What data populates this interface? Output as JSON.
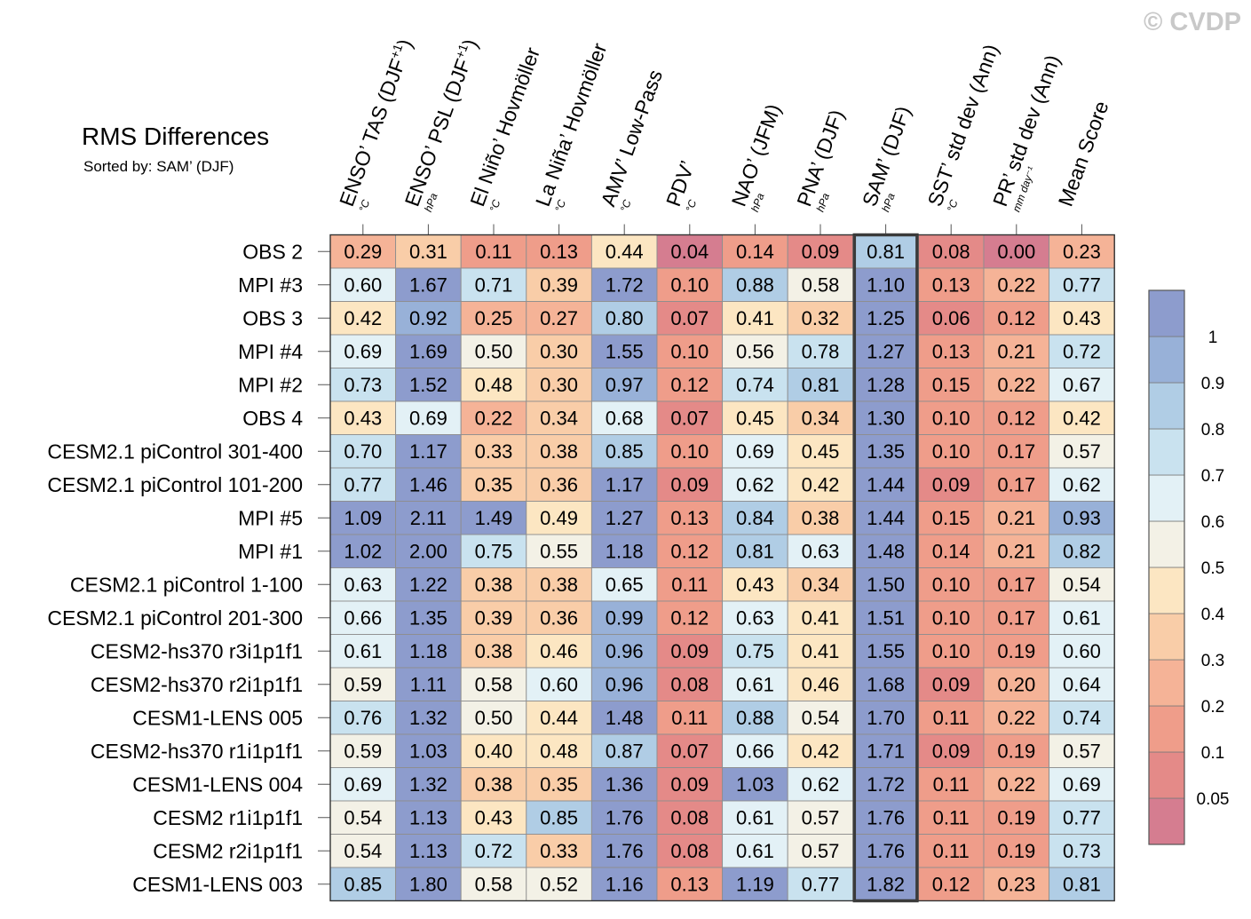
{
  "title": "RMS Differences",
  "subtitle": "Sorted by: SAM’ (DJF)",
  "watermark": "© CVDP",
  "chart_data": {
    "type": "heatmap",
    "sorted_by": "SAM’ (DJF)",
    "columns": [
      {
        "label": "ENSO’ TAS (DJF",
        "sup": "+1",
        "tail": ")",
        "unit": "°C"
      },
      {
        "label": "ENSO’ PSL (DJF",
        "sup": "+1",
        "tail": ")",
        "unit": "hPa"
      },
      {
        "label": "El Niño’ Hovmöller",
        "sup": "",
        "tail": "",
        "unit": "°C"
      },
      {
        "label": "La Niña’ Hovmöller",
        "sup": "",
        "tail": "",
        "unit": "°C"
      },
      {
        "label": "AMV’ Low-Pass",
        "sup": "",
        "tail": "",
        "unit": "°C"
      },
      {
        "label": "PDV’",
        "sup": "",
        "tail": "",
        "unit": "°C"
      },
      {
        "label": "NAO’ (JFM)",
        "sup": "",
        "tail": "",
        "unit": "hPa"
      },
      {
        "label": "PNA’ (DJF)",
        "sup": "",
        "tail": "",
        "unit": "hPa"
      },
      {
        "label": "SAM’ (DJF)",
        "sup": "",
        "tail": "",
        "unit": "hPa"
      },
      {
        "label": "SST’ std dev (Ann)",
        "sup": "",
        "tail": "",
        "unit": "°C"
      },
      {
        "label": "PR’ std dev (Ann)",
        "sup": "",
        "tail": "",
        "unit": "mm day⁻¹"
      },
      {
        "label": "Mean Score",
        "sup": "",
        "tail": "",
        "unit": ""
      }
    ],
    "rows": [
      {
        "name": "OBS 2",
        "values": [
          0.29,
          0.31,
          0.11,
          0.13,
          0.44,
          0.04,
          0.14,
          0.09,
          0.81,
          0.08,
          0.0,
          0.23
        ]
      },
      {
        "name": "MPI #3",
        "values": [
          0.6,
          1.67,
          0.71,
          0.39,
          1.72,
          0.1,
          0.88,
          0.58,
          1.1,
          0.13,
          0.22,
          0.77
        ]
      },
      {
        "name": "OBS 3",
        "values": [
          0.42,
          0.92,
          0.25,
          0.27,
          0.8,
          0.07,
          0.41,
          0.32,
          1.25,
          0.06,
          0.12,
          0.43
        ]
      },
      {
        "name": "MPI #4",
        "values": [
          0.69,
          1.69,
          0.5,
          0.3,
          1.55,
          0.1,
          0.56,
          0.78,
          1.27,
          0.13,
          0.21,
          0.72
        ]
      },
      {
        "name": "MPI #2",
        "values": [
          0.73,
          1.52,
          0.48,
          0.3,
          0.97,
          0.12,
          0.74,
          0.81,
          1.28,
          0.15,
          0.22,
          0.67
        ]
      },
      {
        "name": "OBS 4",
        "values": [
          0.43,
          0.69,
          0.22,
          0.34,
          0.68,
          0.07,
          0.45,
          0.34,
          1.3,
          0.1,
          0.12,
          0.42
        ]
      },
      {
        "name": "CESM2.1 piControl 301-400",
        "values": [
          0.7,
          1.17,
          0.33,
          0.38,
          0.85,
          0.1,
          0.69,
          0.45,
          1.35,
          0.1,
          0.17,
          0.57
        ]
      },
      {
        "name": "CESM2.1 piControl 101-200",
        "values": [
          0.77,
          1.46,
          0.35,
          0.36,
          1.17,
          0.09,
          0.62,
          0.42,
          1.44,
          0.09,
          0.17,
          0.62
        ]
      },
      {
        "name": "MPI #5",
        "values": [
          1.09,
          2.11,
          1.49,
          0.49,
          1.27,
          0.13,
          0.84,
          0.38,
          1.44,
          0.15,
          0.21,
          0.93
        ]
      },
      {
        "name": "MPI #1",
        "values": [
          1.02,
          2.0,
          0.75,
          0.55,
          1.18,
          0.12,
          0.81,
          0.63,
          1.48,
          0.14,
          0.21,
          0.82
        ]
      },
      {
        "name": "CESM2.1 piControl 1-100",
        "values": [
          0.63,
          1.22,
          0.38,
          0.38,
          0.65,
          0.11,
          0.43,
          0.34,
          1.5,
          0.1,
          0.17,
          0.54
        ]
      },
      {
        "name": "CESM2.1 piControl 201-300",
        "values": [
          0.66,
          1.35,
          0.39,
          0.36,
          0.99,
          0.12,
          0.63,
          0.41,
          1.51,
          0.1,
          0.17,
          0.61
        ]
      },
      {
        "name": "CESM2-hs370 r3i1p1f1",
        "values": [
          0.61,
          1.18,
          0.38,
          0.46,
          0.96,
          0.09,
          0.75,
          0.41,
          1.55,
          0.1,
          0.19,
          0.6
        ]
      },
      {
        "name": "CESM2-hs370 r2i1p1f1",
        "values": [
          0.59,
          1.11,
          0.58,
          0.6,
          0.96,
          0.08,
          0.61,
          0.46,
          1.68,
          0.09,
          0.2,
          0.64
        ]
      },
      {
        "name": "CESM1-LENS 005",
        "values": [
          0.76,
          1.32,
          0.5,
          0.44,
          1.48,
          0.11,
          0.88,
          0.54,
          1.7,
          0.11,
          0.22,
          0.74
        ]
      },
      {
        "name": "CESM2-hs370 r1i1p1f1",
        "values": [
          0.59,
          1.03,
          0.4,
          0.48,
          0.87,
          0.07,
          0.66,
          0.42,
          1.71,
          0.09,
          0.19,
          0.57
        ]
      },
      {
        "name": "CESM1-LENS 004",
        "values": [
          0.69,
          1.32,
          0.38,
          0.35,
          1.36,
          0.09,
          1.03,
          0.62,
          1.72,
          0.11,
          0.22,
          0.69
        ]
      },
      {
        "name": "CESM2 r1i1p1f1",
        "values": [
          0.54,
          1.13,
          0.43,
          0.85,
          1.76,
          0.08,
          0.61,
          0.57,
          1.76,
          0.11,
          0.19,
          0.77
        ]
      },
      {
        "name": "CESM2 r2i1p1f1",
        "values": [
          0.54,
          1.13,
          0.72,
          0.33,
          1.76,
          0.08,
          0.61,
          0.57,
          1.76,
          0.11,
          0.19,
          0.73
        ]
      },
      {
        "name": "CESM1-LENS 003",
        "values": [
          0.85,
          1.8,
          0.58,
          0.52,
          1.16,
          0.13,
          1.19,
          0.77,
          1.82,
          0.12,
          0.23,
          0.81
        ]
      }
    ],
    "highlighted_column": "SAM’ (DJF)",
    "colorbar": {
      "levels": [
        0.05,
        0.1,
        0.2,
        0.3,
        0.4,
        0.5,
        0.6,
        0.7,
        0.8,
        0.9,
        1
      ],
      "labels": [
        "0.05",
        "0.1",
        "0.2",
        "0.3",
        "0.4",
        "0.5",
        "0.6",
        "0.7",
        "0.8",
        "0.9",
        "1"
      ],
      "colors": [
        "#d57d90",
        "#e48a88",
        "#ef9d8a",
        "#f5b397",
        "#f9cda8",
        "#fce6c2",
        "#f3f1e6",
        "#e3f1f6",
        "#c9e2ef",
        "#b0cde5",
        "#98b1d8",
        "#8d9ccd"
      ]
    }
  }
}
